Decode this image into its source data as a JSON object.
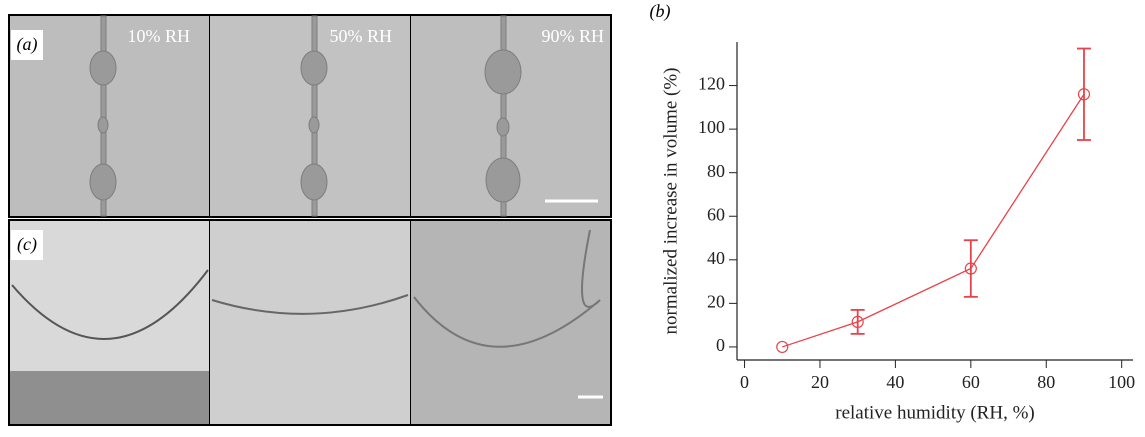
{
  "panels": {
    "a_label": "(a)",
    "c_label": "(c)",
    "humidity_labels": [
      "10% RH",
      "50% RH",
      "90% RH"
    ]
  },
  "chart_data": {
    "type": "line",
    "panel_label": "(b)",
    "x_label": "relative humidity (RH, %)",
    "y_label": "normalized increase in volume (%)",
    "x": [
      10,
      30,
      60,
      90
    ],
    "series": [
      {
        "color": "#e8424a",
        "values": [
          0,
          11.5,
          36,
          116
        ],
        "errors": [
          0,
          5.5,
          13,
          21
        ]
      }
    ],
    "xlim": [
      -2,
      103
    ],
    "ylim": [
      -6,
      140
    ],
    "xticks": [
      0,
      20,
      40,
      60,
      80,
      100
    ],
    "yticks": [
      0,
      20,
      40,
      60,
      80,
      100,
      120
    ]
  }
}
